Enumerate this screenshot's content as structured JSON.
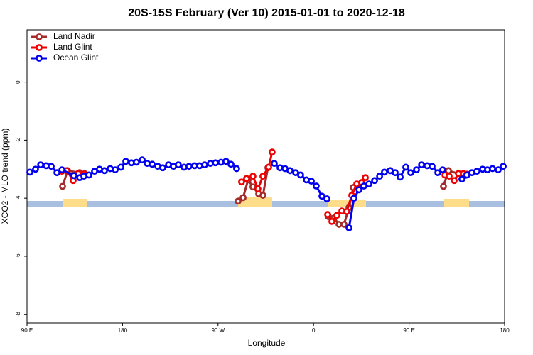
{
  "chart_data": {
    "type": "line",
    "title": "20S-15S February (Ver 10)   2015-01-01 to 2020-12-18",
    "x_label": "Longitude",
    "y_label": "XCO2 - MLO trend (ppm)",
    "xlim": [
      90,
      540
    ],
    "xticks": [
      {
        "value": 90,
        "label": "90 E"
      },
      180,
      {
        "value": 270,
        "label": "90 W"
      },
      {
        "value": 360,
        "label": "0"
      },
      {
        "value": 450,
        "label": "90 E"
      },
      180.0001
    ],
    "ylim": [
      -8.3,
      1.8
    ],
    "yticks": [
      0,
      -2,
      -4,
      -6,
      -8
    ],
    "legend": "top-left",
    "series": [
      {
        "name": "Land Nadir",
        "color": "#a52a2a",
        "x": [
          123.5,
          128.2,
          139.6,
          144.2,
          null,
          288.9,
          293.6,
          298.3,
          302.9,
          308.3,
          312.3,
          317.0,
          null,
          374.0,
          379.3,
          384.0,
          388.7,
          393.4,
          397.4,
          402.1,
          null,
          482.4,
          487.1,
          502.5
        ],
        "values": [
          -3.59,
          -3.05,
          -3.12,
          -3.15,
          null,
          -4.1,
          -3.98,
          -3.37,
          -3.61,
          -3.85,
          -3.9,
          -2.95,
          null,
          -4.63,
          -4.68,
          -4.9,
          -4.9,
          -4.32,
          -3.63,
          -3.54,
          null,
          -3.59,
          -3.05,
          -3.22
        ]
      },
      {
        "name": "Land Glint",
        "color": "#ee0000",
        "x": [
          122.8,
          127.5,
          133.5,
          138.2,
          143.6,
          null,
          292.2,
          296.9,
          302.9,
          307.6,
          312.3,
          317.7,
          321.0,
          null,
          373.3,
          377.3,
          382.0,
          386.7,
          391.3,
          396.0,
          400.7,
          405.4,
          408.8,
          null,
          483.8,
          487.8,
          492.5,
          496.5,
          501.2,
          504.5
        ],
        "values": [
          -3.07,
          -3.05,
          -3.39,
          -3.15,
          -3.17,
          null,
          -3.44,
          -3.32,
          -3.24,
          -3.68,
          -3.24,
          -2.93,
          -2.41,
          null,
          -4.56,
          -4.8,
          -4.59,
          -4.44,
          -4.46,
          -3.9,
          -3.51,
          -3.46,
          -3.29,
          null,
          -3.2,
          -3.24,
          -3.39,
          -3.15,
          -3.15,
          -3.17
        ]
      },
      {
        "name": "Ocean Glint",
        "color": "#0000ee",
        "x": [
          92.7,
          98.0,
          102.8,
          108.1,
          112.8,
          118.2,
          122.9,
          134.2,
          139.6,
          143.6,
          148.3,
          153.6,
          158.3,
          163.0,
          168.4,
          173.1,
          178.4,
          183.1,
          188.4,
          193.1,
          198.5,
          203.2,
          207.9,
          213.2,
          217.9,
          223.3,
          228.0,
          232.6,
          238.0,
          242.7,
          248.0,
          252.7,
          257.4,
          262.8,
          267.5,
          272.8,
          277.5,
          282.2,
          287.5,
          null,
          323.0,
          328.4,
          333.1,
          337.8,
          343.1,
          347.8,
          353.2,
          357.9,
          362.5,
          367.9,
          372.6,
          null,
          393.4,
          398.1,
          402.8,
          407.4,
          412.1,
          417.5,
          422.2,
          426.8,
          432.2,
          436.9,
          441.6,
          446.9,
          451.6,
          457.0,
          461.7,
          467.0,
          471.7,
          477.1,
          481.7,
          null,
          499.8,
          504.5,
          509.2,
          513.9,
          519.3,
          523.9,
          528.6,
          534.0,
          538.7
        ],
        "values": [
          -3.1,
          -3.0,
          -2.85,
          -2.88,
          -2.9,
          -3.12,
          -3.02,
          -3.22,
          -3.29,
          -3.24,
          -3.2,
          -3.07,
          -3.0,
          -3.05,
          -2.98,
          -3.02,
          -2.93,
          -2.73,
          -2.78,
          -2.76,
          -2.68,
          -2.8,
          -2.83,
          -2.9,
          -2.95,
          -2.85,
          -2.9,
          -2.85,
          -2.93,
          -2.9,
          -2.88,
          -2.88,
          -2.85,
          -2.8,
          -2.78,
          -2.76,
          -2.73,
          -2.83,
          -2.98,
          null,
          -2.8,
          -2.95,
          -2.98,
          -3.05,
          -3.12,
          -3.2,
          -3.37,
          -3.41,
          -3.58,
          -3.93,
          -4.02,
          null,
          -5.02,
          -4.0,
          -3.71,
          -3.58,
          -3.51,
          -3.39,
          -3.24,
          -3.1,
          -3.05,
          -3.12,
          -3.27,
          -2.93,
          -3.12,
          -3.02,
          -2.85,
          -2.88,
          -2.9,
          -3.12,
          -3.02,
          null,
          -3.34,
          -3.2,
          -3.12,
          -3.07,
          -3.0,
          -3.02,
          -2.98,
          -3.02,
          -2.9
        ]
      }
    ]
  }
}
